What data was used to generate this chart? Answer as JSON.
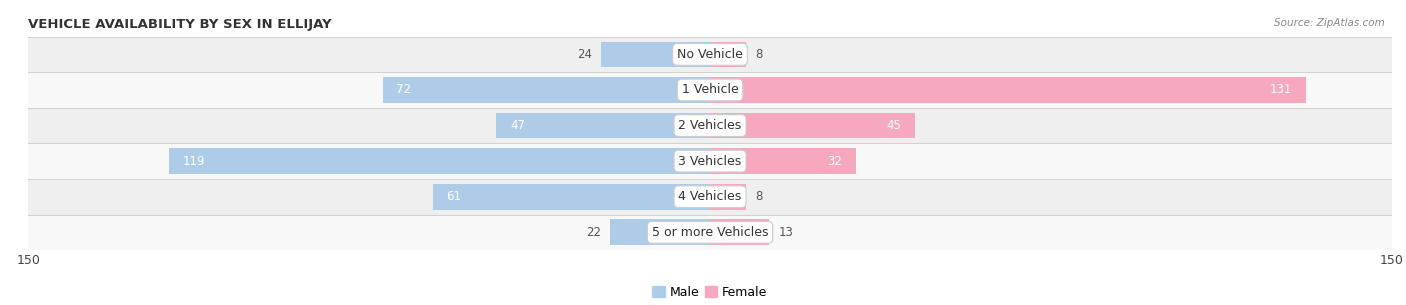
{
  "title": "VEHICLE AVAILABILITY BY SEX IN ELLIJAY",
  "source": "Source: ZipAtlas.com",
  "categories": [
    "No Vehicle",
    "1 Vehicle",
    "2 Vehicles",
    "3 Vehicles",
    "4 Vehicles",
    "5 or more Vehicles"
  ],
  "male_values": [
    24,
    72,
    47,
    119,
    61,
    22
  ],
  "female_values": [
    8,
    131,
    45,
    32,
    8,
    13
  ],
  "male_color": "#85b8de",
  "female_color": "#f07898",
  "male_color_light": "#aecce8",
  "female_color_light": "#f5a8be",
  "xlim": 150,
  "bar_height": 0.72,
  "row_bg_even": "#efefef",
  "row_bg_odd": "#f8f8f8",
  "separator_color": "#d0d0d0",
  "axis_label_fontsize": 9,
  "title_fontsize": 9.5,
  "bar_label_fontsize": 8.5,
  "cat_label_fontsize": 9,
  "legend_fontsize": 9,
  "inside_threshold_male": 40,
  "inside_threshold_female": 20
}
